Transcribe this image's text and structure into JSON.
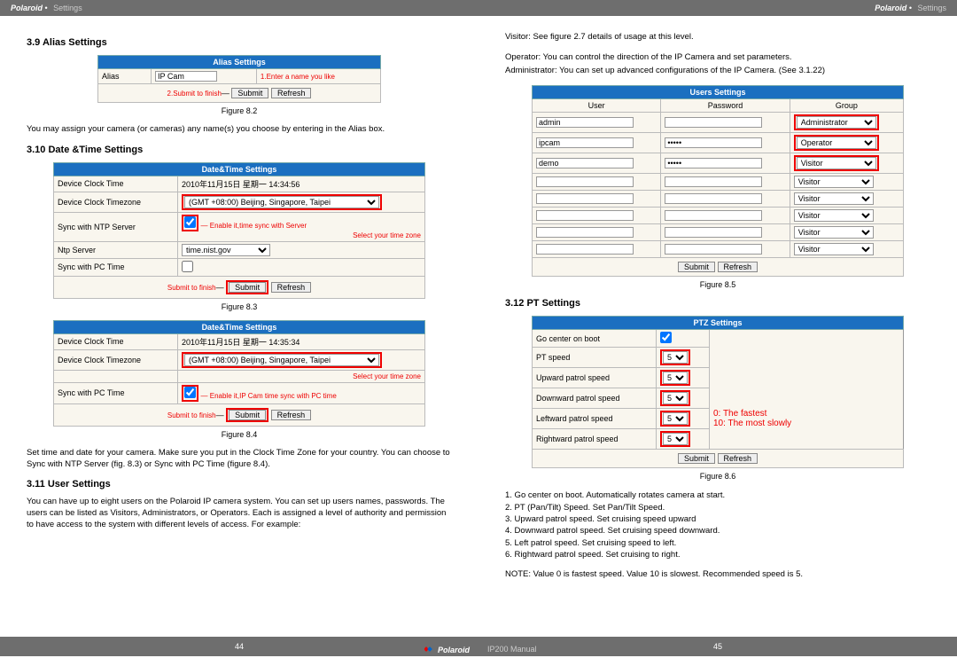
{
  "header": {
    "brand": "Polaroid",
    "section": "Settings"
  },
  "left": {
    "s1": {
      "heading": "3.9 Alias Settings",
      "alias_table": {
        "title": "Alias Settings",
        "row_label": "Alias",
        "value": "IP Cam",
        "ann1": "1.Enter a name you like",
        "ann2": "2.Submit to finish",
        "submit": "Submit",
        "refresh": "Refresh"
      },
      "fig": "Figure 8.2",
      "para": "You may assign your camera (or cameras) any name(s) you choose by entering in the Alias box."
    },
    "s2": {
      "heading": "3.10 Date &Time Settings",
      "dt1": {
        "title": "Date&Time Settings",
        "rows": [
          {
            "l": "Device Clock Time",
            "v": "2010年11月15日 星期一 14:34:56"
          },
          {
            "l": "Device Clock Timezone",
            "v": "(GMT +08:00) Beijing, Singapore, Taipei"
          },
          {
            "l": "Sync with NTP Server",
            "v": "✓",
            "ann": "Enable it,time sync with Server"
          },
          {
            "l": "Ntp Server",
            "v": "time.nist.gov"
          },
          {
            "l": "Sync with PC Time",
            "v": ""
          }
        ],
        "tz_note": "Select your time zone",
        "submit_note": "Submit to finish",
        "submit": "Submit",
        "refresh": "Refresh"
      },
      "fig1": "Figure 8.3",
      "dt2": {
        "title": "Date&Time Settings",
        "rows": [
          {
            "l": "Device Clock Time",
            "v": "2010年11月15日 星期一 14:35:34"
          },
          {
            "l": "Device Clock Timezone",
            "v": "(GMT +08:00) Beijing, Singapore, Taipei"
          },
          {
            "l": "",
            "v": "",
            "ann": "Select your time zone"
          },
          {
            "l": "Sync with PC Time",
            "v": "✓",
            "ann": "Enable it,IP Cam time sync with PC time"
          }
        ],
        "submit_note": "Submit to finish",
        "submit": "Submit",
        "refresh": "Refresh"
      },
      "fig2": "Figure 8.4",
      "para": "Set time and date for your camera. Make sure you put in the Clock Time Zone for your country. You can choose to Sync with NTP Server (fig. 8.3) or Sync with PC Time (figure 8.4)."
    },
    "s3": {
      "heading": "3.11 User Settings",
      "para": "You can have up to eight users on the Polaroid IP camera system. You can set up users names, passwords. The users can be listed as Visitors, Administrators, or Operators. Each is assigned a level of authority and permission to have access to the system with different levels of access. For example:"
    }
  },
  "right": {
    "intro": [
      "Visitor: See figure 2.7 details of usage at this level.",
      "Operator: You can control the direction of the IP Camera and set parameters.",
      "Administrator: You can set up advanced configurations of the IP Camera. (See 3.1.22)"
    ],
    "users": {
      "title": "Users Settings",
      "cols": [
        "User",
        "Password",
        "Group"
      ],
      "rows": [
        {
          "u": "admin",
          "p": "",
          "g": "Administrator"
        },
        {
          "u": "ipcam",
          "p": "•••••",
          "g": "Operator"
        },
        {
          "u": "demo",
          "p": "•••••",
          "g": "Visitor"
        },
        {
          "u": "",
          "p": "",
          "g": "Visitor"
        },
        {
          "u": "",
          "p": "",
          "g": "Visitor"
        },
        {
          "u": "",
          "p": "",
          "g": "Visitor"
        },
        {
          "u": "",
          "p": "",
          "g": "Visitor"
        },
        {
          "u": "",
          "p": "",
          "g": "Visitor"
        }
      ],
      "submit": "Submit",
      "refresh": "Refresh"
    },
    "fig_users": "Figure 8.5",
    "pt": {
      "heading": "3.12 PT Settings",
      "title": "PTZ Settings",
      "rows": [
        {
          "l": "Go center on boot",
          "v": "✓"
        },
        {
          "l": "PT speed",
          "v": "5"
        },
        {
          "l": "Upward patrol speed",
          "v": "5"
        },
        {
          "l": "Downward patrol speed",
          "v": "5"
        },
        {
          "l": "Leftward patrol speed",
          "v": "5"
        },
        {
          "l": "Rightward patrol speed",
          "v": "5"
        }
      ],
      "legend": [
        "0:  The fastest",
        "10: The most slowly"
      ],
      "submit": "Submit",
      "refresh": "Refresh"
    },
    "fig_pt": "Figure 8.6",
    "list": [
      "1. Go center on boot. Automatically rotates camera at start.",
      "2. PT (Pan/Tilt) Speed. Set Pan/Tilt Speed.",
      "3. Upward patrol speed. Set cruising speed upward",
      "4. Downward patrol speed. Set cruising speed downward.",
      "5. Left patrol speed. Set cruising speed to left.",
      "6. Rightward patrol speed. Set cruising to right."
    ],
    "note": "NOTE: Value 0 is fastest speed. Value 10 is slowest. Recommended speed is 5."
  },
  "footer": {
    "left_pg": "44",
    "right_pg": "45",
    "brand": "Polaroid",
    "manual": "IP200 Manual"
  }
}
